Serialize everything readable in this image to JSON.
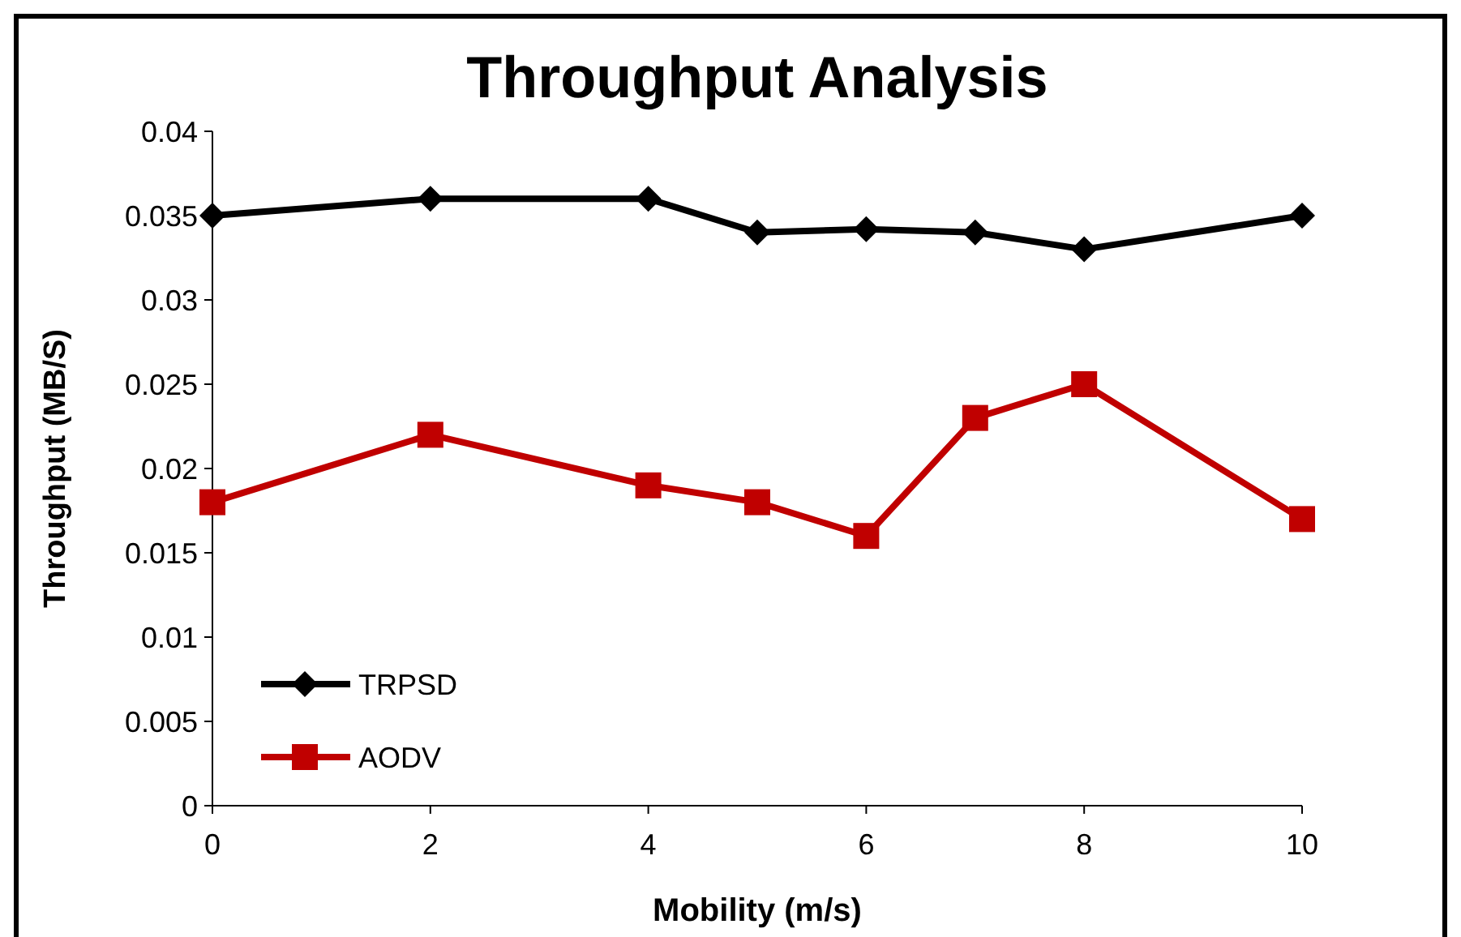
{
  "chart_data": {
    "type": "line",
    "title": "Throughput Analysis",
    "xlabel": "Mobility (m/s)",
    "ylabel": "Throughput (MB/S)",
    "x": [
      0,
      2,
      4,
      5,
      6,
      7,
      8,
      10
    ],
    "series": [
      {
        "name": "TRPSD",
        "color": "#000000",
        "marker": "diamond",
        "values": [
          0.035,
          0.036,
          0.036,
          0.034,
          0.0342,
          0.034,
          0.033,
          0.035
        ]
      },
      {
        "name": "AODV",
        "color": "#c00000",
        "marker": "square",
        "values": [
          0.018,
          0.022,
          0.019,
          0.018,
          0.016,
          0.023,
          0.025,
          0.017
        ]
      }
    ],
    "xlim": [
      0,
      10
    ],
    "xticks": [
      0,
      2,
      4,
      6,
      8,
      10
    ],
    "ylim": [
      0,
      0.04
    ],
    "yticks": [
      0,
      0.005,
      0.01,
      0.015,
      0.02,
      0.025,
      0.03,
      0.035,
      0.04
    ],
    "grid": false,
    "legend": "bottom left",
    "line_style": "solid"
  }
}
